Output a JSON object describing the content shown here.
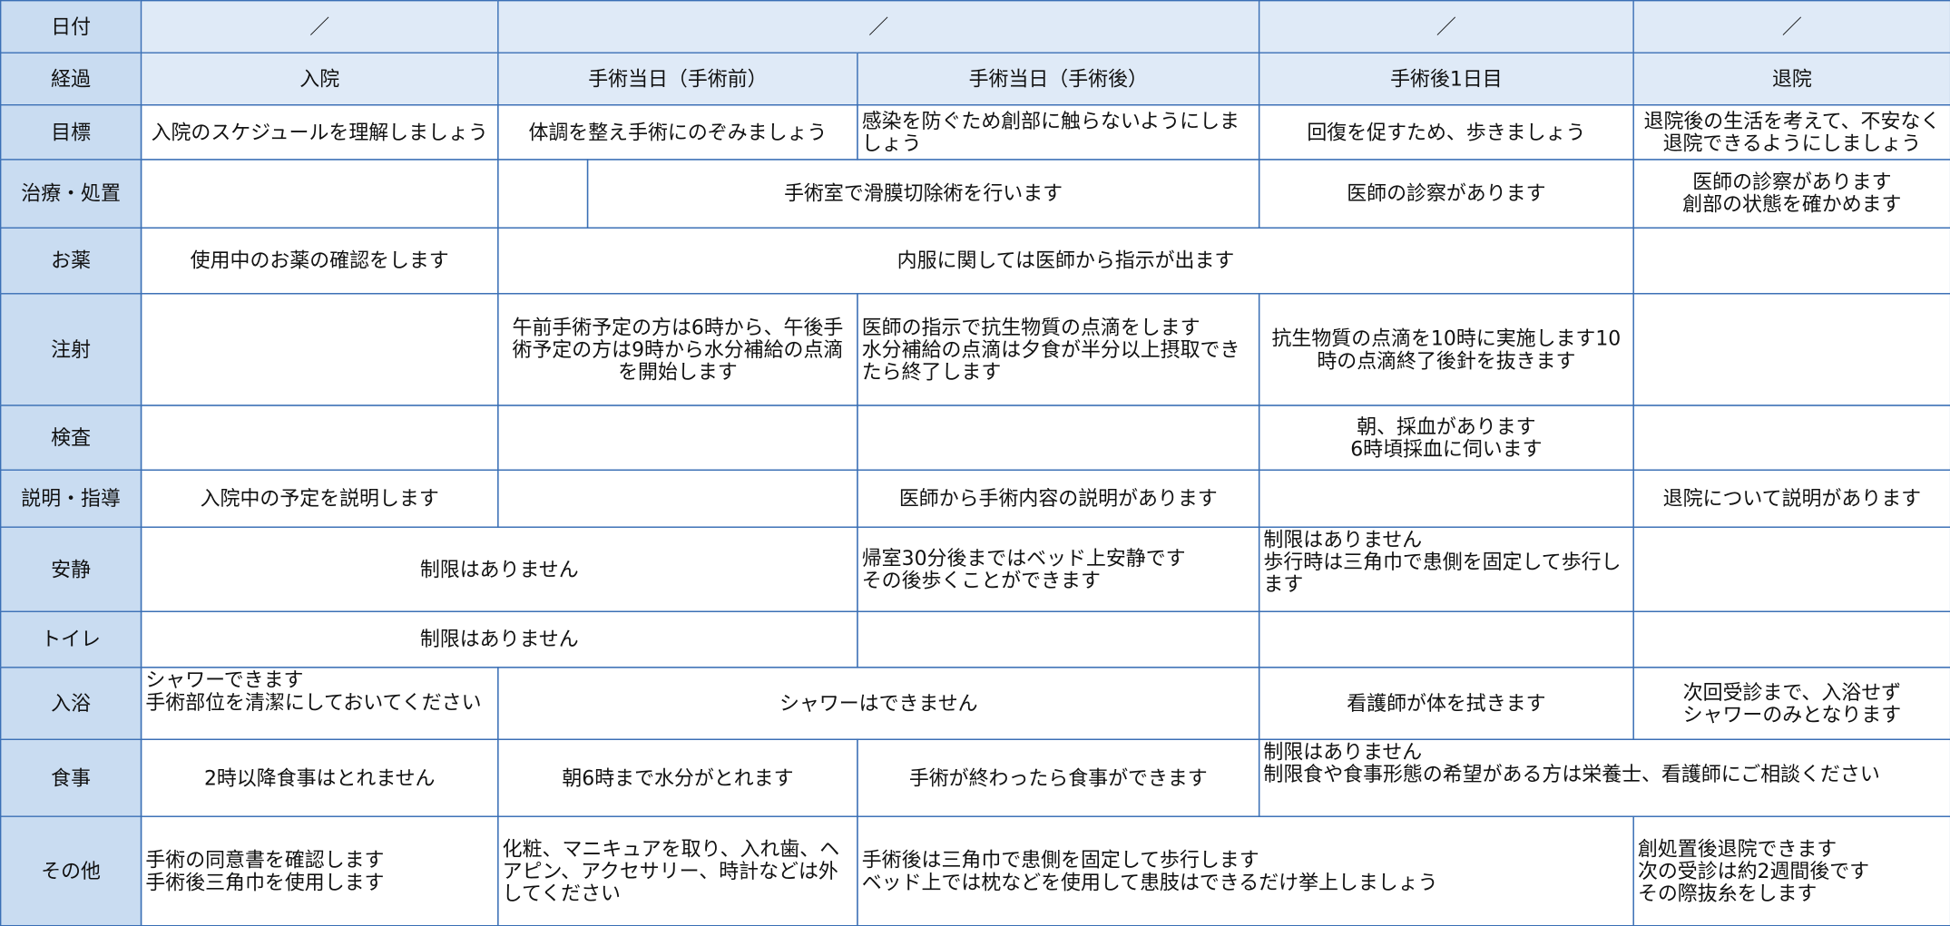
{
  "table": {
    "rows": [
      {
        "label": "日付",
        "cells": [
          "／",
          "／",
          "／",
          "／"
        ]
      },
      {
        "label": "経過",
        "cells": [
          "入院",
          "手術当日（手術前）",
          "手術当日（手術後）",
          "手術後1日目",
          "退院"
        ]
      },
      {
        "label": "目標",
        "cells": [
          "入院のスケジュールを理解しましょう",
          "体調を整え手術にのぞみましょう",
          "感染を防ぐため創部に触らないようにしましょう",
          "回復を促すため、歩きましょう",
          "退院後の生活を考えて、不安なく退院できるようにしましょう"
        ]
      },
      {
        "label": "治療・処置",
        "cells": [
          "手術室で滑膜切除術を行います",
          "医師の診察があります",
          "医師の診察があります\n創部の状態を確かめます"
        ]
      },
      {
        "label": "お薬",
        "cells": [
          "使用中のお薬の確認をします",
          "内服に関しては医師から指示が出ます"
        ]
      },
      {
        "label": "注射",
        "cells": [
          "午前手術予定の方は6時から、午後手術予定の方は9時から水分補給の点滴を開始します",
          "医師の指示で抗生物質の点滴をします\n水分補給の点滴は夕食が半分以上摂取できたら終了します",
          "抗生物質の点滴を10時に実施します10時の点滴終了後針を抜きます"
        ]
      },
      {
        "label": "検査",
        "cells": [
          "朝、採血があります\n6時頃採血に伺います"
        ]
      },
      {
        "label": "説明・指導",
        "cells": [
          "入院中の予定を説明します",
          "医師から手術内容の説明があります",
          "退院について説明があります"
        ]
      },
      {
        "label": "安静",
        "cells": [
          "制限はありません",
          "帰室30分後まではベッド上安静です\nその後歩くことができます",
          "制限はありません\n歩行時は三角巾で患側を固定して歩行します"
        ]
      },
      {
        "label": "トイレ",
        "cells": [
          "制限はありません"
        ]
      },
      {
        "label": "入浴",
        "cells": [
          "シャワーできます\n手術部位を清潔にしておいてください",
          "シャワーはできません",
          "看護師が体を拭きます",
          "次回受診まで、入浴せず\nシャワーのみとなります"
        ]
      },
      {
        "label": "食事",
        "cells": [
          "2時以降食事はとれません",
          "朝6時まで水分がとれます",
          "手術が終わったら食事ができます",
          "制限はありません\n制限食や食事形態の希望がある方は栄養士、看護師にご相談ください"
        ]
      },
      {
        "label": "その他",
        "cells": [
          "手術の同意書を確認します\n手術後三角巾を使用します",
          "化粧、マニキュアを取り、入れ歯、ヘアピン、アクセサリー、時計などは外してください",
          "手術後は三角巾で患側を固定して歩行します\nベッド上では枕などを使用して患肢はできるだけ挙上しましょう",
          "創処置後退院できます\n次の受診は約2週間後です\nその際抜糸をします"
        ]
      }
    ]
  }
}
